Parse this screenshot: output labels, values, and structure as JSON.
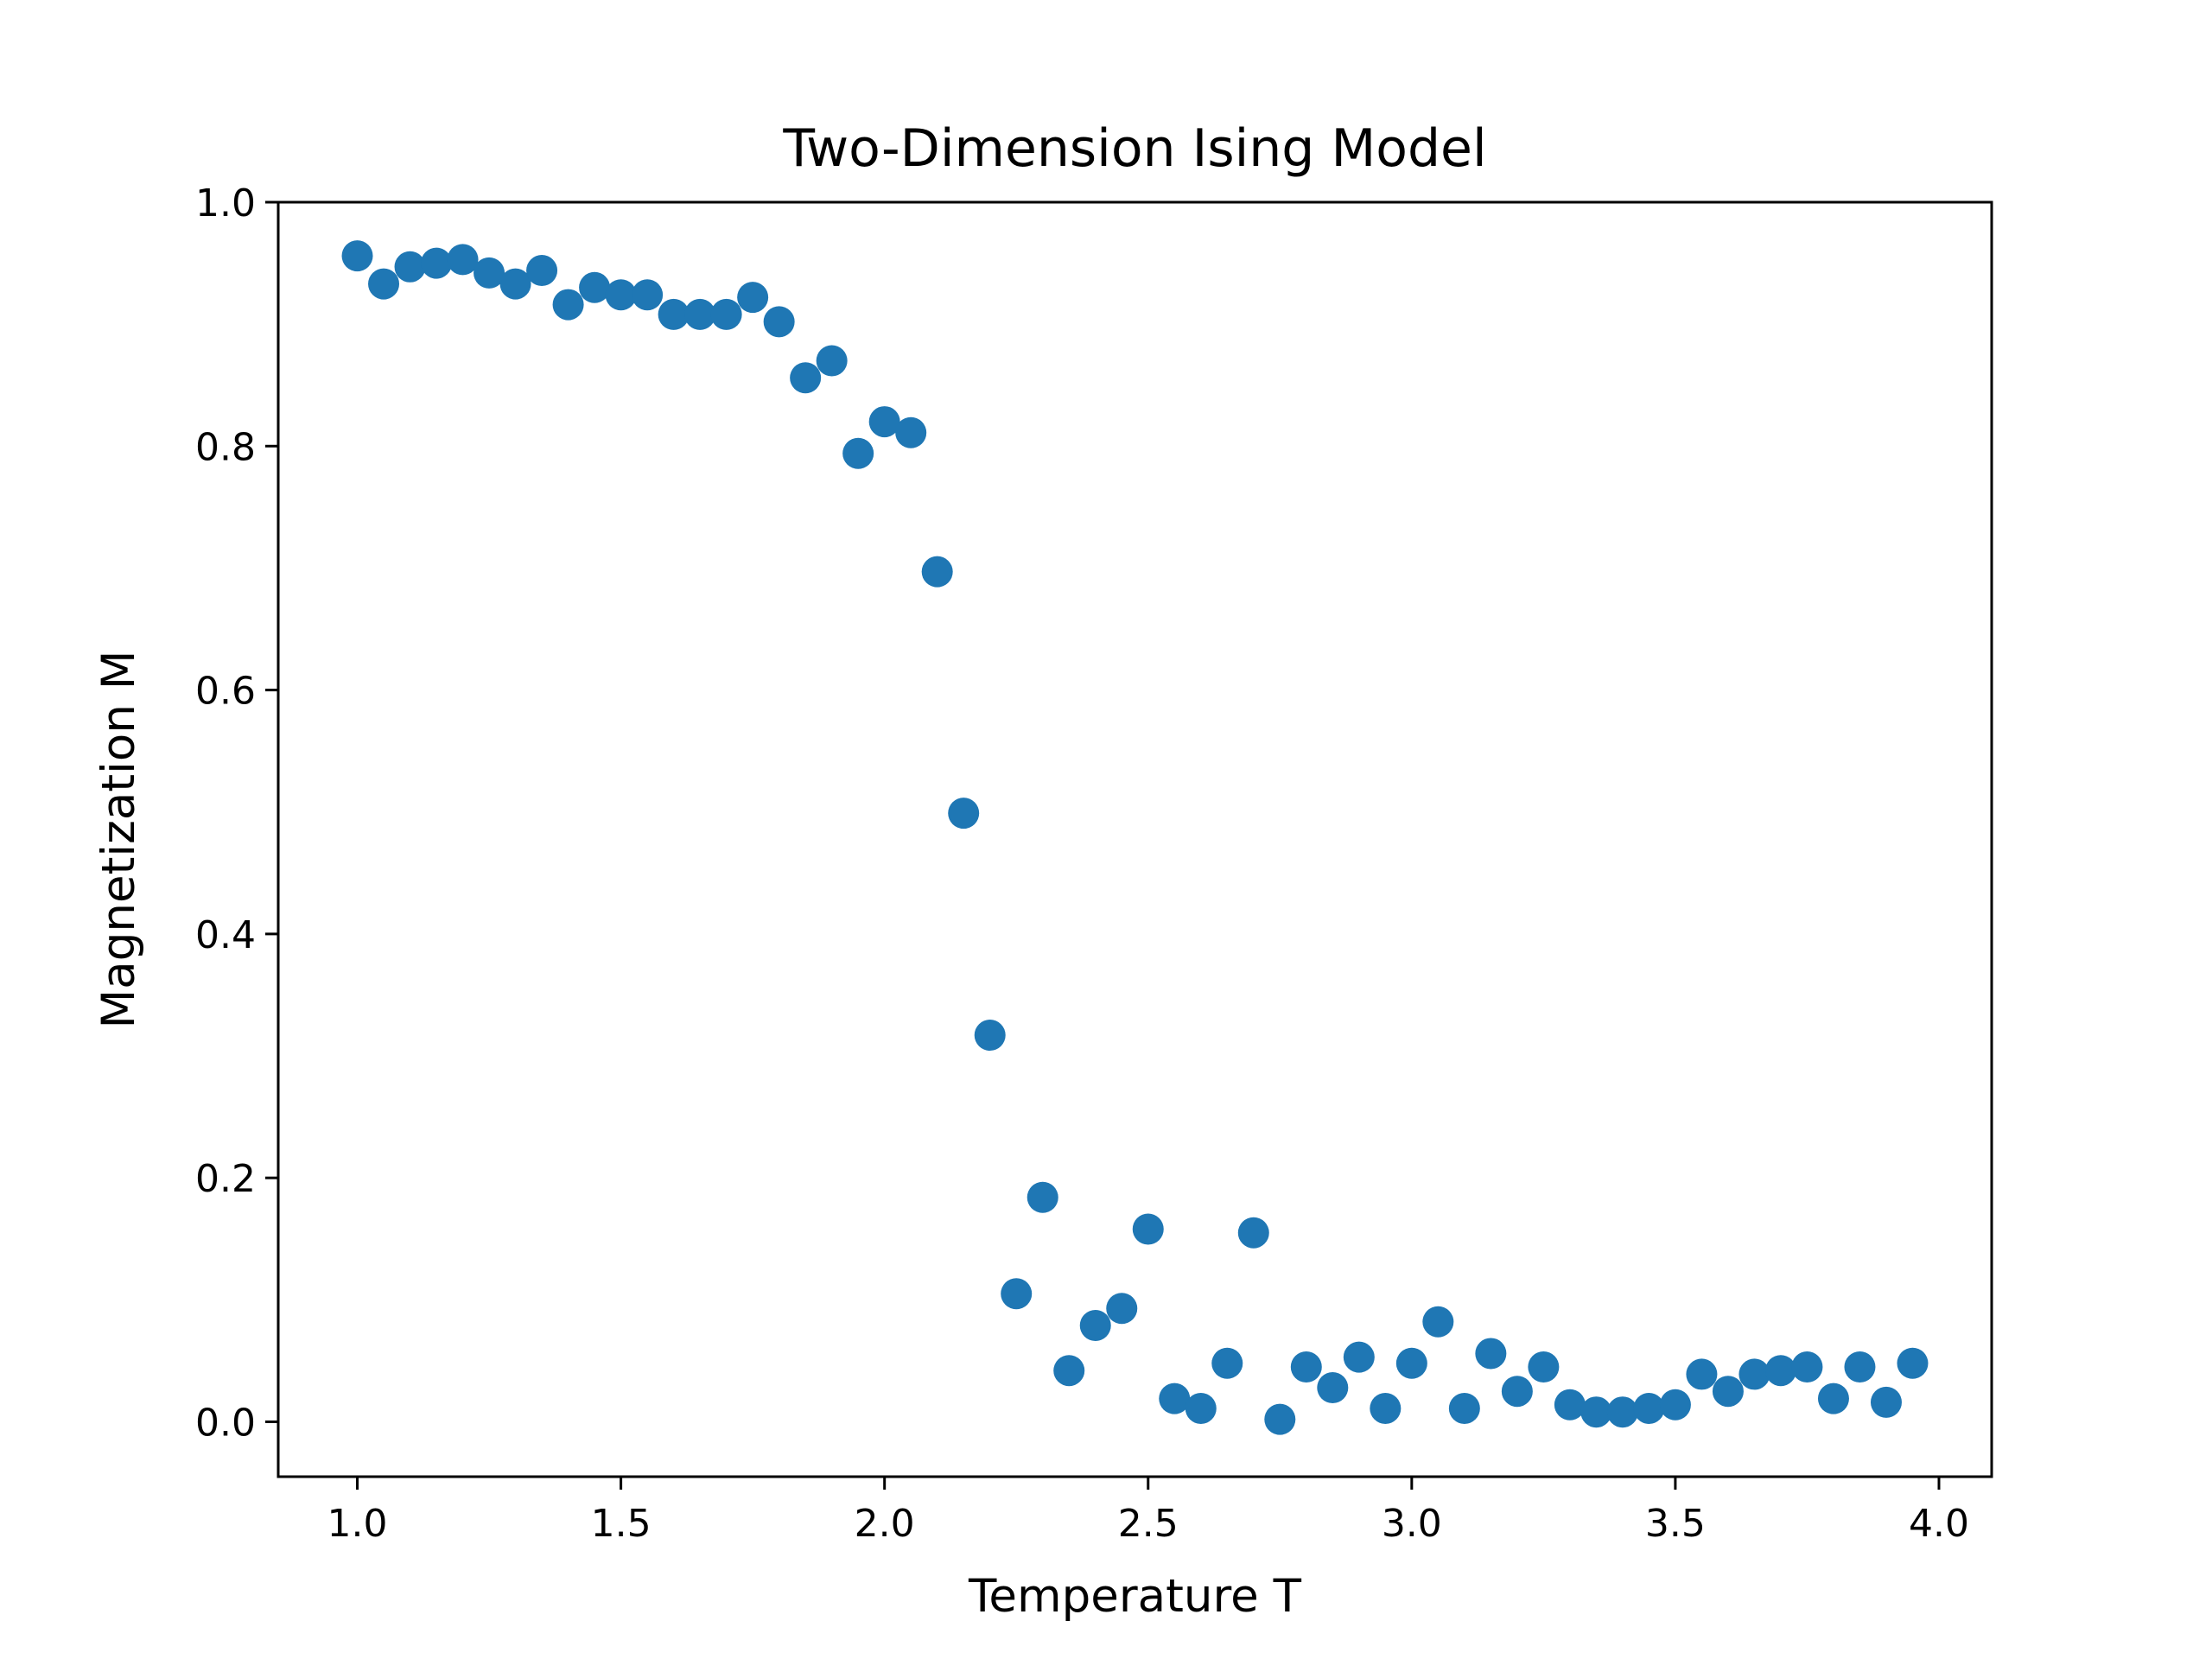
{
  "chart_data": {
    "type": "scatter",
    "title": "Two-Dimension Ising Model",
    "xlabel": "Temperature T",
    "ylabel": "Magnetization M",
    "xlim": [
      0.85,
      4.1
    ],
    "ylim": [
      -0.045,
      1.0
    ],
    "xticks": [
      1.0,
      1.5,
      2.0,
      2.5,
      3.0,
      3.5,
      4.0
    ],
    "xtick_labels": [
      "1.0",
      "1.5",
      "2.0",
      "2.5",
      "3.0",
      "3.5",
      "4.0"
    ],
    "yticks": [
      0.0,
      0.2,
      0.4,
      0.6,
      0.8,
      1.0
    ],
    "ytick_labels": [
      "0.0",
      "0.2",
      "0.4",
      "0.6",
      "0.8",
      "1.0"
    ],
    "grid": false,
    "series": [
      {
        "color": "#1f77b4",
        "x": [
          1.0,
          1.05,
          1.1,
          1.15,
          1.2,
          1.25,
          1.3,
          1.35,
          1.4,
          1.45,
          1.5,
          1.55,
          1.6,
          1.65,
          1.7,
          1.75,
          1.8,
          1.85,
          1.9,
          1.95,
          2.0,
          2.05,
          2.1,
          2.15,
          2.2,
          2.25,
          2.3,
          2.35,
          2.4,
          2.45,
          2.5,
          2.55,
          2.6,
          2.65,
          2.7,
          2.75,
          2.8,
          2.85,
          2.9,
          2.95,
          3.0,
          3.05,
          3.1,
          3.15,
          3.2,
          3.25,
          3.3,
          3.35,
          3.4,
          3.45,
          3.5,
          3.55,
          3.6,
          3.65,
          3.7,
          3.75,
          3.8,
          3.85,
          3.9,
          3.95
        ],
        "y": [
          0.956,
          0.933,
          0.947,
          0.95,
          0.953,
          0.942,
          0.933,
          0.944,
          0.916,
          0.93,
          0.924,
          0.924,
          0.908,
          0.908,
          0.908,
          0.922,
          0.902,
          0.856,
          0.87,
          0.794,
          0.82,
          0.811,
          0.697,
          0.499,
          0.317,
          0.105,
          0.184,
          0.042,
          0.079,
          0.093,
          0.158,
          0.019,
          0.011,
          0.048,
          0.155,
          0.002,
          0.045,
          0.028,
          0.053,
          0.011,
          0.048,
          0.082,
          0.011,
          0.056,
          0.025,
          0.045,
          0.014,
          0.008,
          0.008,
          0.011,
          0.014,
          0.039,
          0.025,
          0.039,
          0.042,
          0.045,
          0.019,
          0.045,
          0.016,
          0.048
        ]
      }
    ]
  }
}
